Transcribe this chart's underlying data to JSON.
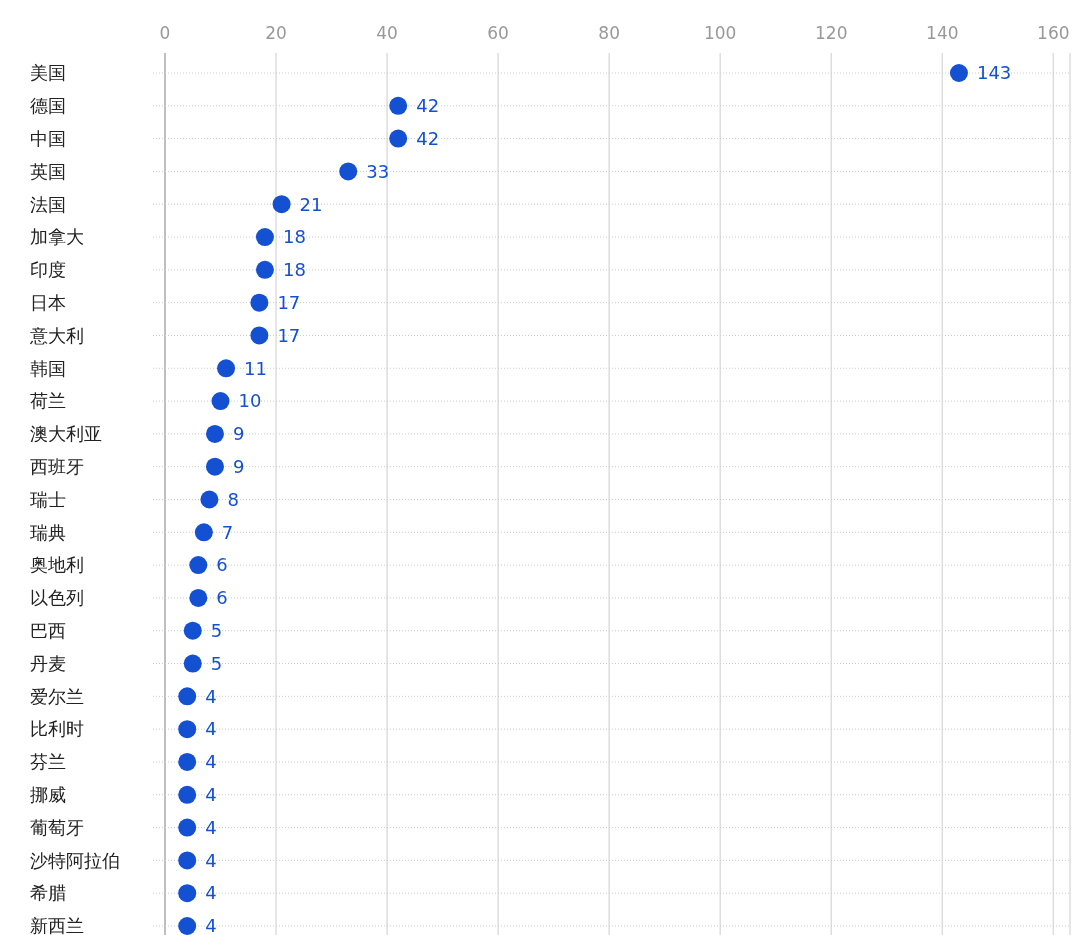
{
  "chart_data": {
    "type": "scatter",
    "orientation": "horizontal",
    "categories": [
      "美国",
      "德国",
      "中国",
      "英国",
      "法国",
      "加拿大",
      "印度",
      "日本",
      "意大利",
      "韩国",
      "荷兰",
      "澳大利亚",
      "西班牙",
      "瑞士",
      "瑞典",
      "奥地利",
      "以色列",
      "巴西",
      "丹麦",
      "爱尔兰",
      "比利时",
      "芬兰",
      "挪威",
      "葡萄牙",
      "沙特阿拉伯",
      "希腊",
      "新西兰"
    ],
    "series": [
      {
        "color": "#1450d2",
        "values": [
          143,
          42,
          42,
          33,
          21,
          18,
          18,
          17,
          17,
          11,
          10,
          9,
          9,
          8,
          7,
          6,
          6,
          5,
          5,
          4,
          4,
          4,
          4,
          4,
          4,
          4,
          4
        ]
      }
    ],
    "xlim": [
      0,
      163
    ],
    "xticks": [
      0,
      20,
      40,
      60,
      80,
      100,
      120,
      140,
      160
    ],
    "grid": true,
    "data_labels": true,
    "marker": "circle"
  }
}
